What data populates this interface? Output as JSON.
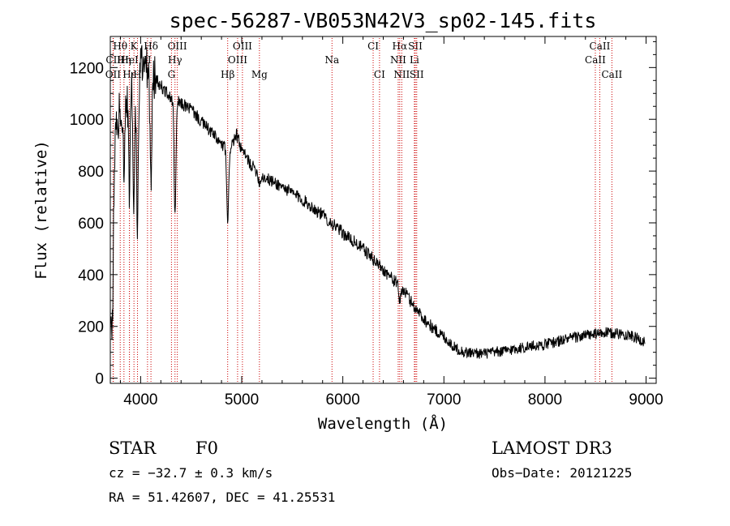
{
  "chart_data": {
    "type": "line",
    "title": "spec-56287-VB053N42V3_sp02-145.fits",
    "xlabel": "Wavelength (Å)",
    "ylabel": "Flux (relative)",
    "xlim": [
      3700,
      9100
    ],
    "ylim": [
      -20,
      1320
    ],
    "x_ticks": [
      4000,
      5000,
      6000,
      7000,
      8000,
      9000
    ],
    "y_ticks": [
      0,
      200,
      400,
      600,
      800,
      1000,
      1200
    ],
    "line_color": "#000000",
    "marker_color": "#cc0000",
    "spectrum_trend": {
      "wavelength": [
        3700,
        3720,
        3760,
        3800,
        3850,
        3900,
        3950,
        4000,
        4050,
        4100,
        4200,
        4300,
        4400,
        4500,
        4600,
        4700,
        4800,
        4870,
        4950,
        5000,
        5100,
        5200,
        5400,
        5600,
        5800,
        6000,
        6200,
        6300,
        6400,
        6500,
        6600,
        6700,
        6800,
        6900,
        7000,
        7100,
        7200,
        7400,
        7600,
        7800,
        8000,
        8200,
        8400,
        8600,
        8800,
        8900,
        9000
      ],
      "flux": [
        150,
        800,
        950,
        1050,
        1080,
        1150,
        1180,
        1220,
        1200,
        1180,
        1130,
        1080,
        1060,
        1040,
        990,
        950,
        900,
        880,
        940,
        880,
        820,
        780,
        740,
        690,
        630,
        560,
        500,
        460,
        420,
        380,
        340,
        280,
        230,
        190,
        160,
        120,
        100,
        95,
        105,
        120,
        130,
        150,
        165,
        175,
        170,
        155,
        140
      ]
    },
    "absorption_features": [
      {
        "wavelength": 3720,
        "depth": 600
      },
      {
        "wavelength": 3835,
        "depth": 250
      },
      {
        "wavelength": 3889,
        "depth": 400
      },
      {
        "wavelength": 3934,
        "depth": 500
      },
      {
        "wavelength": 3969,
        "depth": 600
      },
      {
        "wavelength": 4102,
        "depth": 450
      },
      {
        "wavelength": 4340,
        "depth": 450
      },
      {
        "wavelength": 4861,
        "depth": 300
      },
      {
        "wavelength": 5175,
        "depth": 40
      },
      {
        "wavelength": 6563,
        "depth": 60
      }
    ],
    "markers": [
      {
        "label": "Hθ",
        "wavelength": 3798,
        "row": 0
      },
      {
        "label": "CII",
        "wavelength": 3730,
        "row": 1
      },
      {
        "label": "OII",
        "wavelength": 3727,
        "row": 2
      },
      {
        "label": "Hη",
        "wavelength": 3835,
        "row": 1
      },
      {
        "label": "Hε",
        "wavelength": 3889,
        "row": 2
      },
      {
        "label": "K",
        "wavelength": 3934,
        "row": 0
      },
      {
        "label": "HeI",
        "wavelength": 3889,
        "row": 1
      },
      {
        "label": "H",
        "wavelength": 3969,
        "row": 2
      },
      {
        "label": "Hδ",
        "wavelength": 4102,
        "row": 0
      },
      {
        "label": "II",
        "wavelength": 4068,
        "row": 1
      },
      {
        "label": "G",
        "wavelength": 4305,
        "row": 2
      },
      {
        "label": "OIII",
        "wavelength": 4363,
        "row": 0
      },
      {
        "label": "Hγ",
        "wavelength": 4340,
        "row": 1
      },
      {
        "label": "Hβ",
        "wavelength": 4861,
        "row": 2
      },
      {
        "label": "OIII",
        "wavelength": 5007,
        "row": 0
      },
      {
        "label": "OIII",
        "wavelength": 4959,
        "row": 1
      },
      {
        "label": "Mg",
        "wavelength": 5175,
        "row": 2
      },
      {
        "label": "Na",
        "wavelength": 5893,
        "row": 1
      },
      {
        "label": "CI",
        "wavelength": 6300,
        "row": 0
      },
      {
        "label": "CI",
        "wavelength": 6363,
        "row": 2
      },
      {
        "label": "Hα",
        "wavelength": 6563,
        "row": 0
      },
      {
        "label": "NII",
        "wavelength": 6548,
        "row": 1
      },
      {
        "label": "NII",
        "wavelength": 6583,
        "row": 2
      },
      {
        "label": "SII",
        "wavelength": 6717,
        "row": 0
      },
      {
        "label": "Li",
        "wavelength": 6708,
        "row": 1
      },
      {
        "label": "SII",
        "wavelength": 6731,
        "row": 2
      },
      {
        "label": "CaII",
        "wavelength": 8542,
        "row": 0
      },
      {
        "label": "CaII",
        "wavelength": 8498,
        "row": 1
      },
      {
        "label": "CaII",
        "wavelength": 8662,
        "row": 2
      }
    ]
  },
  "info": {
    "class_label": "STAR",
    "subclass": "F0",
    "survey": "LAMOST DR3",
    "cz": "cz = −32.7 ± 0.3 km/s",
    "obs_date": "Obs−Date: 20121225",
    "coords": "RA =  51.42607, DEC =  41.25531"
  }
}
